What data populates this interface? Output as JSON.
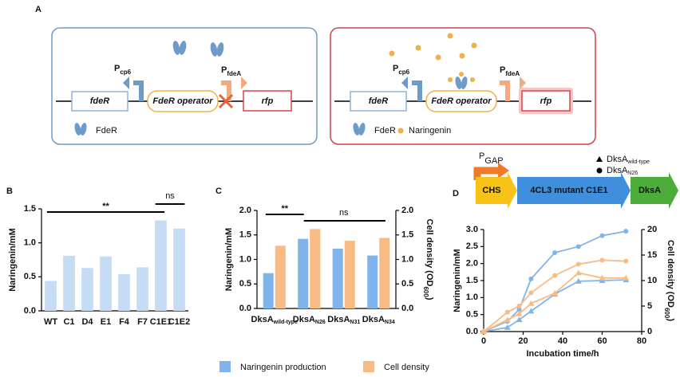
{
  "panel_labels": [
    "A",
    "B",
    "C",
    "D"
  ],
  "panel_a": {
    "left": {
      "promoter1": {
        "main": "P",
        "sub": "cp6"
      },
      "promoter2": {
        "main": "P",
        "sub": "fdeA"
      },
      "gene1": "fdeR",
      "operator": "FdeR operator",
      "gene2": "rfp",
      "legend": [
        "FdeR"
      ]
    },
    "right": {
      "promoter1": {
        "main": "P",
        "sub": "cp6"
      },
      "promoter2": {
        "main": "P",
        "sub": "fdeA"
      },
      "gene1": "fdeR",
      "operator": "FdeR operator",
      "gene2": "rfp",
      "legend": [
        "FdeR",
        "Naringenin"
      ]
    }
  },
  "pathway": {
    "promoter": {
      "main": "P",
      "sub": "GAP"
    },
    "genes": [
      "CHS",
      "4CL3 mutant C1E1",
      "DksA"
    ]
  },
  "chart_data": [
    {
      "type": "bar",
      "ylabel": "Naringenin/mM",
      "categories": [
        "WT",
        "C1",
        "D4",
        "E1",
        "F4",
        "F7",
        "C1E1",
        "C1E2"
      ],
      "values": [
        0.44,
        0.81,
        0.63,
        0.8,
        0.54,
        0.64,
        1.33,
        1.21
      ],
      "color": "#c6dcf5",
      "ylim": [
        0,
        1.5
      ],
      "yticks": [
        {
          "value": 0,
          "label": "0.0"
        },
        0.5,
        {
          "value": 1,
          "label": "1.0"
        },
        1.5
      ],
      "annotations": [
        "**",
        "ns"
      ]
    },
    {
      "type": "grouped-bar",
      "ylabel": "Naringenin/mM",
      "y2label": {
        "main": "Cell density (OD",
        "sub": "600",
        "end": ")"
      },
      "categories": [
        {
          "main": "DksA",
          "sub": "wild-type"
        },
        {
          "main": "DksA",
          "sub": "N26"
        },
        {
          "main": "DksA",
          "sub": "N31"
        },
        {
          "main": "DksA",
          "sub": "N34"
        }
      ],
      "series": [
        {
          "name": "Naringenin production",
          "color": "#80b4ec",
          "values": [
            0.72,
            1.42,
            1.22,
            1.08
          ]
        },
        {
          "name": "Cell density",
          "color": "#f8bb83",
          "values": [
            1.28,
            1.62,
            1.38,
            1.44
          ],
          "axis": "y2"
        }
      ],
      "ylim": [
        0,
        2
      ],
      "yticks": [
        {
          "value": 0,
          "label": "0.0"
        },
        0.5,
        {
          "value": 1,
          "label": "1.0"
        },
        1.5,
        {
          "value": 2,
          "label": "2.0"
        }
      ],
      "y2lim": [
        0,
        2
      ],
      "y2ticks": [
        {
          "value": 0,
          "label": "0.0"
        },
        0.5,
        {
          "value": 1,
          "label": "1.0"
        },
        1.5,
        {
          "value": 2,
          "label": "2.0"
        }
      ],
      "annotations": [
        "**",
        "ns"
      ]
    },
    {
      "type": "line",
      "xlabel": "Incubation time/h",
      "ylabel": "Naringenin/mM",
      "y2label": {
        "main": "Cell density (OD",
        "sub": "600",
        "end": ")"
      },
      "x": [
        0,
        12,
        18,
        24,
        36,
        48,
        60,
        72
      ],
      "xlim": [
        0,
        80
      ],
      "xticks": [
        0,
        20,
        40,
        60,
        80
      ],
      "ylim": [
        0,
        3
      ],
      "yticks": [
        {
          "value": 0,
          "label": "0.0"
        },
        0.5,
        {
          "value": 1,
          "label": "1.0"
        },
        1.5,
        {
          "value": 2,
          "label": "2.0"
        },
        2.5,
        {
          "value": 3,
          "label": "3.0"
        }
      ],
      "y2lim": [
        0,
        20
      ],
      "y2ticks": [
        0,
        5,
        10,
        15,
        20
      ],
      "series": [
        {
          "color": "#80b4ec",
          "marker": "triangle",
          "values": [
            0,
            0.12,
            0.35,
            0.6,
            1.1,
            1.48,
            1.5,
            1.52
          ]
        },
        {
          "color": "#80b4ec",
          "marker": "circle",
          "values": [
            0,
            0.3,
            0.65,
            1.55,
            2.32,
            2.5,
            2.82,
            2.95
          ]
        },
        {
          "color": "#f8bb83",
          "marker": "triangle",
          "values": [
            0,
            2.3,
            3.5,
            5.5,
            7.5,
            11.5,
            10.5,
            10.5
          ],
          "axis": "y2"
        },
        {
          "color": "#f8bb83",
          "marker": "circle",
          "values": [
            0,
            3.8,
            5,
            7.6,
            11,
            13.2,
            14,
            13.8
          ],
          "axis": "y2"
        }
      ],
      "legend": [
        {
          "marker": "triangle",
          "main": "DksA",
          "sub": "wild-type"
        },
        {
          "marker": "circle",
          "main": "DksA",
          "sub": "N26"
        }
      ]
    }
  ]
}
